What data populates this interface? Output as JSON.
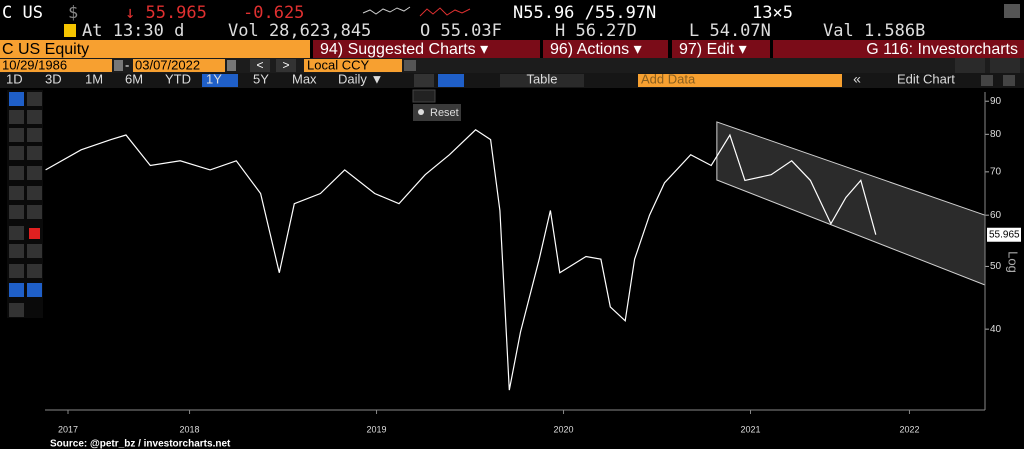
{
  "ticker": {
    "symbol": "C US",
    "currency": "$",
    "last": "↓ 55.965",
    "change": "-0.625",
    "bid_ask": "N55.96 /55.97N",
    "size": "13×5",
    "time": "At 13:30 d",
    "volume": "Vol 28,623,845",
    "open": "O 55.03F",
    "high": "H 56.27D",
    "low": "L 54.07N",
    "value": "Val 1.586B"
  },
  "tabs": {
    "security": "C US Equity",
    "menus": [
      "94) Suggested Charts ▾",
      "96) Actions ▾",
      "97) Edit ▾"
    ],
    "page": "G 116: Investorcharts"
  },
  "range": {
    "start": "10/29/1986",
    "end": "03/07/2022",
    "prev": "<",
    "next": ">",
    "currency": "Local CCY"
  },
  "toolbar": {
    "periods": [
      "1D",
      "3D",
      "1M",
      "6M",
      "YTD",
      "1Y",
      "5Y",
      "Max"
    ],
    "selected": 5,
    "frequency": "Daily ▼",
    "table": "Table",
    "add_data": "Add Data",
    "collapse": "«",
    "edit_chart": "Edit Chart",
    "reset": "Reset"
  },
  "chart_data": {
    "type": "line",
    "log": true,
    "x": [
      2017.73,
      2017.92,
      2018.08,
      2018.16,
      2018.29,
      2018.45,
      2018.61,
      2018.75,
      2018.88,
      2018.98,
      2019.06,
      2019.2,
      2019.33,
      2019.49,
      2019.62,
      2019.76,
      2019.89,
      2020.03,
      2020.11,
      2020.16,
      2020.21,
      2020.27,
      2020.37,
      2020.43,
      2020.48,
      2020.62,
      2020.7,
      2020.75,
      2020.83,
      2020.88,
      2020.96,
      2021.04,
      2021.18,
      2021.29,
      2021.39,
      2021.47,
      2021.61,
      2021.72,
      2021.82,
      2021.93,
      2022.01,
      2022.09,
      2022.17
    ],
    "series": [
      {
        "color": "#ffffff",
        "values": [
          70.5,
          75.7,
          78.5,
          79.8,
          71.6,
          72.8,
          70.5,
          72.8,
          64.8,
          48.9,
          62.5,
          64.8,
          70.5,
          64.8,
          62.5,
          69.3,
          74.4,
          81.3,
          78.5,
          61.0,
          32.2,
          39.6,
          51.3,
          61.0,
          48.9,
          51.8,
          51.3,
          43.3,
          41.2,
          51.3,
          60.0,
          67.3,
          74.4,
          71.6,
          79.8,
          67.9,
          69.3,
          72.8,
          67.9,
          58.2,
          63.9,
          67.9,
          55.965
        ]
      }
    ],
    "last_label": "55.965",
    "channel": {
      "x": [
        2021.32,
        2022.754
      ],
      "upper": [
        83.6,
        60.0
      ],
      "lower": [
        68.0,
        46.8
      ]
    },
    "xlim": [
      2017.727,
      2022.754
    ],
    "xticks": [
      {
        "value": 2017.85,
        "label": "2017"
      },
      {
        "value": 2018.5,
        "label": "2018"
      },
      {
        "value": 2019.5,
        "label": "2019"
      },
      {
        "value": 2020.5,
        "label": "2020"
      },
      {
        "value": 2021.5,
        "label": "2021"
      },
      {
        "value": 2022.35,
        "label": "2022"
      }
    ],
    "ylim": [
      30,
      93
    ],
    "yticks": [
      40,
      50,
      60,
      70,
      80,
      90
    ],
    "y_axis_label": "Log",
    "source": "Source: @petr_bz / investorcharts.net"
  }
}
